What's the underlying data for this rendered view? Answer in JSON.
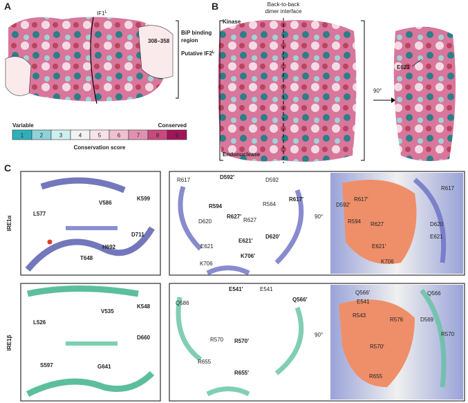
{
  "panel_a": {
    "label": "A",
    "if1": "IF1",
    "if1_sup": "L",
    "bip": [
      "BiP binding",
      "region"
    ],
    "range": "308–358",
    "if2": "Putative IF2",
    "if2_sup": "L"
  },
  "scale": {
    "left": "Variable",
    "right": "Conserved",
    "title": "Conservation score",
    "steps": [
      1,
      2,
      3,
      4,
      5,
      6,
      7,
      8,
      9
    ],
    "colors": [
      "#2fb0b8",
      "#8fd3d8",
      "#cfeef0",
      "#f2f2f2",
      "#f8e3ea",
      "#f0bfd0",
      "#e191b0",
      "#c9497f",
      "#a0155a"
    ]
  },
  "panel_b": {
    "label": "B",
    "interface": [
      "Back-to-back",
      "dimer interface"
    ],
    "kinase": "Kinase",
    "endonuclease": "Endonuclease",
    "rotation": "90°",
    "residue": "E621"
  },
  "panel_c": {
    "label": "C",
    "rows": [
      {
        "name": "IRE1α",
        "left": [
          "L577",
          "V586",
          "K599",
          "D711",
          "H692",
          "T648"
        ],
        "middle": [
          "R617",
          "D592′",
          "D592",
          "R594",
          "R564",
          "R617′",
          "R627′",
          "R627",
          "D620",
          "E621",
          "E621′",
          "D620′",
          "K706",
          "K706′"
        ],
        "right": [
          "R617′",
          "R617",
          "D592′",
          "R594",
          "R627",
          "D620",
          "E621′",
          "E621",
          "K706"
        ],
        "rotation": "90°"
      },
      {
        "name": "IRE1β",
        "left": [
          "L526",
          "V535",
          "K548",
          "D660",
          "S597",
          "G641"
        ],
        "middle": [
          "E541′",
          "E541",
          "Q586",
          "Q566′",
          "R570",
          "R570′",
          "R655",
          "R655′"
        ],
        "right": [
          "Q566′",
          "E541",
          "Q566",
          "R543",
          "R576",
          "D569",
          "R570′",
          "R570",
          "R655"
        ],
        "rotation": "90°"
      }
    ]
  }
}
